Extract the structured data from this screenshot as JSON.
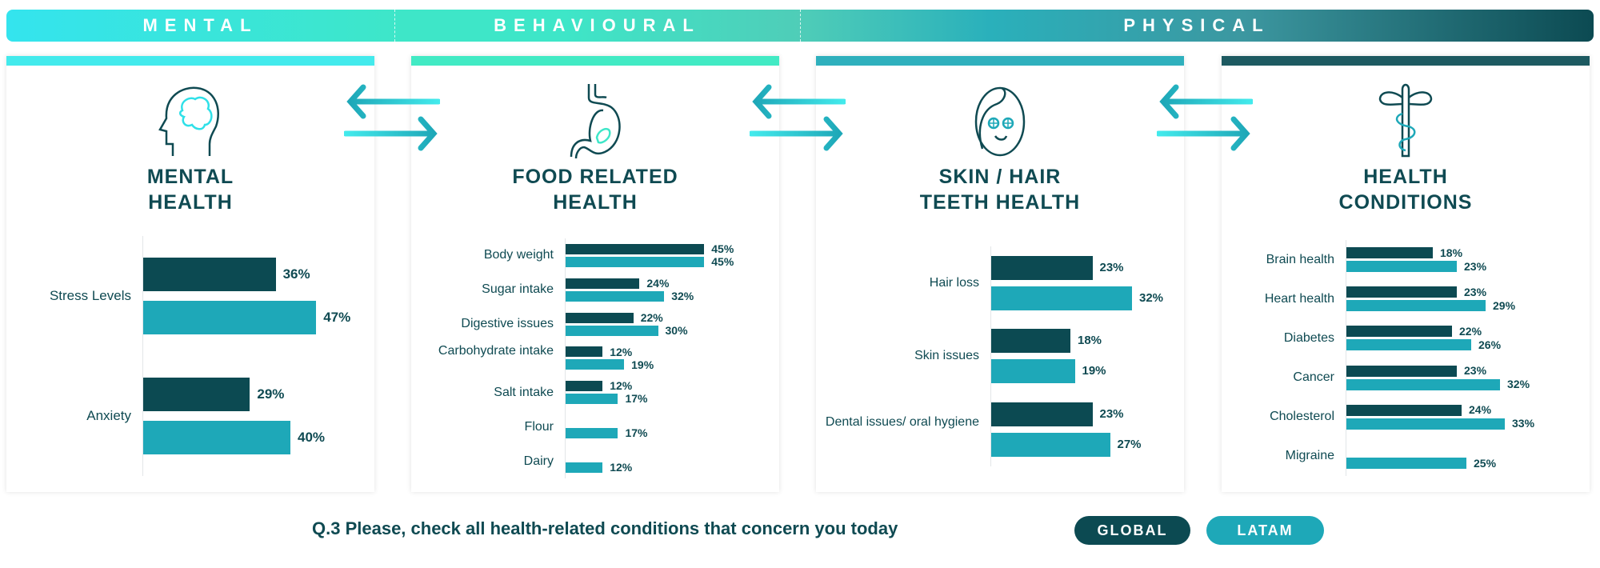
{
  "banner": {
    "mental": "MENTAL",
    "behavioural": "BEHAVIOURAL",
    "physical": "PHYSICAL"
  },
  "panels": [
    {
      "title_line1": "MENTAL",
      "title_line2": "HEALTH",
      "icon": "brain-head-icon",
      "strip_color": "#43eaec"
    },
    {
      "title_line1": "FOOD RELATED",
      "title_line2": "HEALTH",
      "icon": "stomach-icon",
      "strip_color": "#42eac4"
    },
    {
      "title_line1": "SKIN / HAIR",
      "title_line2": "TEETH HEALTH",
      "icon": "face-mask-icon",
      "strip_color": "#2fb0bd"
    },
    {
      "title_line1": "HEALTH",
      "title_line2": "CONDITIONS",
      "icon": "caduceus-icon",
      "strip_color": "#1d5a61"
    }
  ],
  "colors": {
    "global": "#0c4a52",
    "latam": "#1ea8b8"
  },
  "question": "Q.3 Please, check all health-related conditions that concern you today",
  "legend": {
    "global": "GLOBAL",
    "latam": "LATAM"
  },
  "chart_data": [
    {
      "type": "bar",
      "orientation": "horizontal",
      "categories": [
        "Stress Levels",
        "Anxiety"
      ],
      "series": [
        {
          "name": "GLOBAL",
          "values": [
            36,
            29
          ]
        },
        {
          "name": "LATAM",
          "values": [
            47,
            40
          ]
        }
      ],
      "value_suffix": "%"
    },
    {
      "type": "bar",
      "orientation": "horizontal",
      "categories": [
        "Body weight",
        "Sugar intake",
        "Digestive issues",
        "Carbohydrate intake",
        "Salt intake",
        "Flour",
        "Dairy"
      ],
      "series": [
        {
          "name": "GLOBAL",
          "values": [
            45,
            24,
            22,
            12,
            12,
            null,
            null
          ]
        },
        {
          "name": "LATAM",
          "values": [
            45,
            32,
            30,
            19,
            17,
            17,
            12
          ]
        }
      ],
      "value_suffix": "%"
    },
    {
      "type": "bar",
      "orientation": "horizontal",
      "categories": [
        "Hair loss",
        "Skin issues",
        "Dental issues/ oral hygiene"
      ],
      "series": [
        {
          "name": "GLOBAL",
          "values": [
            23,
            18,
            23
          ]
        },
        {
          "name": "LATAM",
          "values": [
            32,
            19,
            27
          ]
        }
      ],
      "value_suffix": "%"
    },
    {
      "type": "bar",
      "orientation": "horizontal",
      "categories": [
        "Brain health",
        "Heart health",
        "Diabetes",
        "Cancer",
        "Cholesterol",
        "Migraine"
      ],
      "series": [
        {
          "name": "GLOBAL",
          "values": [
            18,
            23,
            22,
            23,
            24,
            null
          ]
        },
        {
          "name": "LATAM",
          "values": [
            23,
            29,
            26,
            32,
            33,
            25
          ]
        }
      ],
      "value_suffix": "%"
    }
  ]
}
